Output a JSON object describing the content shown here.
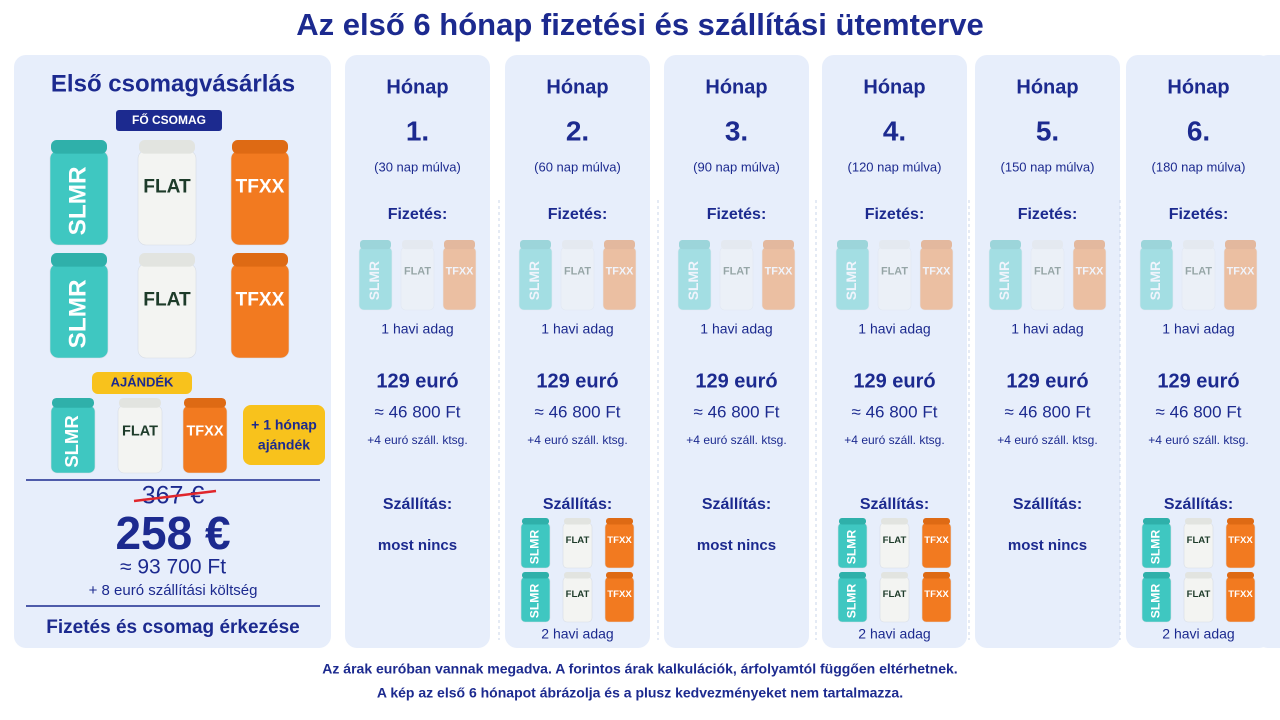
{
  "header": {
    "title": "Az első 6 hónap fizetési és szállítási ütemterve"
  },
  "products": [
    "SLMR",
    "FLAT",
    "TFXX"
  ],
  "first_purchase": {
    "title": "Első csomagvásárlás",
    "main_badge": "FŐ CSOMAG",
    "gift_badge": "AJÁNDÉK",
    "gift_extra": [
      "+ 1 hónap",
      "ajándék"
    ],
    "old_price": "367 €",
    "price": "258 €",
    "price_huf": "≈ 93 700 Ft",
    "shipping": "+ 8 euró szállítási költség",
    "footer": "Fizetés és csomag érkezése"
  },
  "months": [
    {
      "label": "Hónap",
      "number": "1.",
      "when": "(30 nap múlva)",
      "payment_label": "Fizetés:",
      "payment_amount": "1 havi adag",
      "price": "129 euró",
      "price_huf": "≈ 46 800 Ft",
      "shipping": "+4 euró száll. ktsg.",
      "delivery_label": "Szállítás:",
      "delivery_text": "most nincs"
    },
    {
      "label": "Hónap",
      "number": "2.",
      "when": "(60 nap múlva)",
      "payment_label": "Fizetés:",
      "payment_amount": "1 havi adag",
      "price": "129 euró",
      "price_huf": "≈ 46 800 Ft",
      "shipping": "+4 euró száll. ktsg.",
      "delivery_label": "Szállítás:",
      "delivery_amount": "2 havi adag"
    },
    {
      "label": "Hónap",
      "number": "3.",
      "when": "(90 nap múlva)",
      "payment_label": "Fizetés:",
      "payment_amount": "1 havi adag",
      "price": "129 euró",
      "price_huf": "≈ 46 800 Ft",
      "shipping": "+4 euró száll. ktsg.",
      "delivery_label": "Szállítás:",
      "delivery_text": "most nincs"
    },
    {
      "label": "Hónap",
      "number": "4.",
      "when": "(120 nap múlva)",
      "payment_label": "Fizetés:",
      "payment_amount": "1 havi adag",
      "price": "129 euró",
      "price_huf": "≈ 46 800 Ft",
      "shipping": "+4 euró száll. ktsg.",
      "delivery_label": "Szállítás:",
      "delivery_amount": "2 havi adag"
    },
    {
      "label": "Hónap",
      "number": "5.",
      "when": "(150 nap múlva)",
      "payment_label": "Fizetés:",
      "payment_amount": "1 havi adag",
      "price": "129 euró",
      "price_huf": "≈ 46 800 Ft",
      "shipping": "+4 euró száll. ktsg.",
      "delivery_label": "Szállítás:",
      "delivery_text": "most nincs"
    },
    {
      "label": "Hónap",
      "number": "6.",
      "when": "(180 nap múlva)",
      "payment_label": "Fizetés:",
      "payment_amount": "1 havi adag",
      "price": "129 euró",
      "price_huf": "≈ 46 800 Ft",
      "shipping": "+4 euró száll. ktsg.",
      "delivery_label": "Szállítás:",
      "delivery_amount": "2 havi adag"
    }
  ],
  "notes": [
    "Az árak euróban vannak megadva. A forintos árak kalkulációk, árfolyamtól függően eltérhetnek.",
    "A kép az első 6 hónapot ábrázolja és a plusz kedvezményeket nem tartalmazza."
  ]
}
